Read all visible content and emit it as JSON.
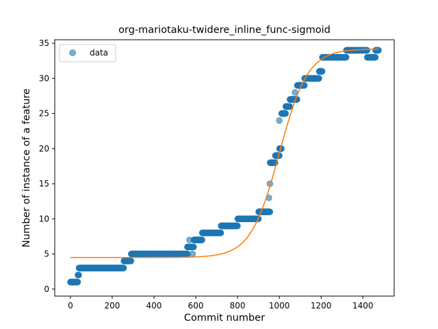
{
  "chart_data": {
    "type": "scatter",
    "title": "org-mariotaku-twidere_inline_func-sigmoid",
    "xlabel": "Commit number",
    "ylabel": "Number of instance of a feature",
    "xlim": [
      -75,
      1550
    ],
    "ylim": [
      -1,
      35.5
    ],
    "xticks": [
      0,
      200,
      400,
      600,
      800,
      1000,
      1200,
      1400
    ],
    "yticks": [
      0,
      5,
      10,
      15,
      20,
      25,
      30,
      35
    ],
    "grid": false,
    "legend": {
      "placement": "top-left",
      "entries": [
        "data"
      ]
    },
    "colors": {
      "data": "#1f77b4",
      "fit": "#ff7f0e"
    },
    "series": [
      {
        "name": "data",
        "kind": "scatter",
        "segments": [
          {
            "x0": 0,
            "x1": 35,
            "y": 1
          },
          {
            "x0": 36,
            "x1": 40,
            "y": 2
          },
          {
            "x0": 41,
            "x1": 255,
            "y": 3
          },
          {
            "x0": 256,
            "x1": 290,
            "y": 4
          },
          {
            "x0": 291,
            "x1": 560,
            "y": 5
          },
          {
            "x0": 560,
            "x1": 590,
            "y": 6
          },
          {
            "x0": 591,
            "x1": 630,
            "y": 7
          },
          {
            "x0": 631,
            "x1": 720,
            "y": 8
          },
          {
            "x0": 721,
            "x1": 800,
            "y": 9
          },
          {
            "x0": 801,
            "x1": 900,
            "y": 10
          },
          {
            "x0": 901,
            "x1": 955,
            "y": 11
          },
          {
            "x0": 956,
            "x1": 980,
            "y": 18
          },
          {
            "x0": 981,
            "x1": 1000,
            "y": 19
          },
          {
            "x0": 1001,
            "x1": 1010,
            "y": 20
          },
          {
            "x0": 1011,
            "x1": 1030,
            "y": 25
          },
          {
            "x0": 1031,
            "x1": 1050,
            "y": 26
          },
          {
            "x0": 1051,
            "x1": 1085,
            "y": 27
          },
          {
            "x0": 1086,
            "x1": 1120,
            "y": 29
          },
          {
            "x0": 1121,
            "x1": 1190,
            "y": 30
          },
          {
            "x0": 1191,
            "x1": 1205,
            "y": 31
          },
          {
            "x0": 1206,
            "x1": 1320,
            "y": 33
          },
          {
            "x0": 1321,
            "x1": 1420,
            "y": 34
          },
          {
            "x0": 1421,
            "x1": 1460,
            "y": 33
          },
          {
            "x0": 1461,
            "x1": 1475,
            "y": 34
          }
        ],
        "points": [
          {
            "x": 570,
            "y": 7
          },
          {
            "x": 585,
            "y": 5
          },
          {
            "x": 950,
            "y": 13
          },
          {
            "x": 955,
            "y": 15
          },
          {
            "x": 1000,
            "y": 24
          },
          {
            "x": 1075,
            "y": 28
          }
        ]
      },
      {
        "name": "",
        "kind": "line",
        "model": "sigmoid",
        "params": {
          "low": 4.5,
          "high": 34.2,
          "midpoint": 1000,
          "rate": 0.0146
        },
        "x_range": [
          0,
          1475
        ]
      }
    ]
  }
}
